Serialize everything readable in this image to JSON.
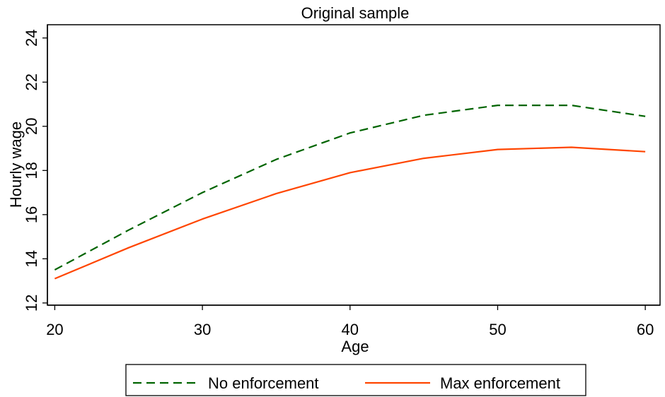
{
  "chart_data": {
    "type": "line",
    "title": "Original sample",
    "xlabel": "Age",
    "ylabel": "Hourly wage",
    "xlim": [
      19.5,
      61
    ],
    "ylim": [
      11.9,
      24.6
    ],
    "xticks": [
      20,
      30,
      40,
      50,
      60
    ],
    "yticks": [
      12,
      14,
      16,
      18,
      20,
      22,
      24
    ],
    "grid": false,
    "legend_position": "bottom",
    "x": [
      20,
      25,
      30,
      35,
      40,
      45,
      50,
      55,
      60
    ],
    "series": [
      {
        "name": "No enforcement",
        "color": "#006400",
        "dash": "dashed",
        "values": [
          13.5,
          15.3,
          17.0,
          18.5,
          19.7,
          20.5,
          20.95,
          20.95,
          20.45
        ]
      },
      {
        "name": "Max enforcement",
        "color": "#ff4500",
        "dash": "solid",
        "values": [
          13.1,
          14.5,
          15.8,
          16.95,
          17.9,
          18.55,
          18.95,
          19.05,
          18.85
        ]
      }
    ]
  }
}
